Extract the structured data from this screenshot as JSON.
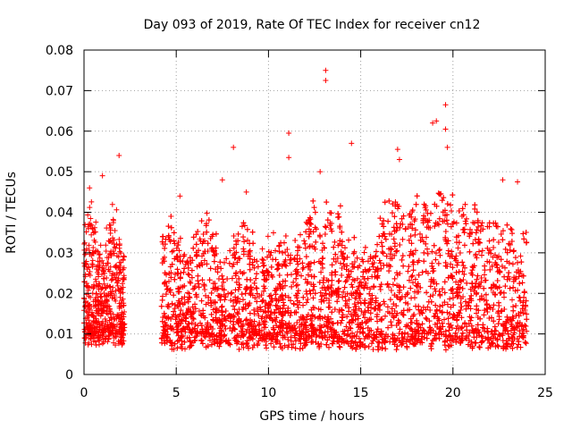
{
  "chart_data": {
    "type": "scatter",
    "title": "Day 093 of 2019, Rate Of TEC Index for receiver cn12",
    "xlabel": "GPS time / hours",
    "ylabel": "ROTI / TECUs",
    "xlim": [
      0,
      25
    ],
    "ylim": [
      0,
      0.08
    ],
    "xticks": [
      0,
      5,
      10,
      15,
      20,
      25
    ],
    "xtick_labels": [
      "0",
      "5",
      "10",
      "15",
      "20",
      "25"
    ],
    "yticks": [
      0,
      0.01,
      0.02,
      0.03,
      0.04,
      0.05,
      0.06,
      0.07,
      0.08
    ],
    "ytick_labels": [
      "0",
      "0.01",
      "0.02",
      "0.03",
      "0.04",
      "0.05",
      "0.06",
      "0.07",
      "0.08"
    ],
    "grid": true,
    "marker": "+",
    "color": "#ff0000",
    "series": [
      {
        "name": "ROTI",
        "segments": [
          {
            "x_start": 0.0,
            "x_end": 2.2,
            "typical_min": 0.005,
            "typical_max": 0.04
          },
          {
            "x_start": 4.2,
            "x_end": 24.0,
            "typical_min": 0.004,
            "typical_max": 0.045
          }
        ],
        "gap": [
          2.2,
          4.2
        ],
        "peaks": [
          {
            "x": 0.3,
            "y": 0.046
          },
          {
            "x": 1.0,
            "y": 0.049
          },
          {
            "x": 1.9,
            "y": 0.054
          },
          {
            "x": 5.2,
            "y": 0.044
          },
          {
            "x": 7.5,
            "y": 0.048
          },
          {
            "x": 8.1,
            "y": 0.056
          },
          {
            "x": 8.8,
            "y": 0.045
          },
          {
            "x": 11.1,
            "y": 0.0595
          },
          {
            "x": 11.1,
            "y": 0.0535
          },
          {
            "x": 12.8,
            "y": 0.05
          },
          {
            "x": 13.1,
            "y": 0.075
          },
          {
            "x": 13.1,
            "y": 0.0725
          },
          {
            "x": 14.5,
            "y": 0.057
          },
          {
            "x": 17.0,
            "y": 0.0555
          },
          {
            "x": 17.1,
            "y": 0.053
          },
          {
            "x": 18.9,
            "y": 0.062
          },
          {
            "x": 19.1,
            "y": 0.0625
          },
          {
            "x": 19.6,
            "y": 0.0665
          },
          {
            "x": 19.6,
            "y": 0.0605
          },
          {
            "x": 19.7,
            "y": 0.056
          },
          {
            "x": 22.7,
            "y": 0.048
          },
          {
            "x": 23.5,
            "y": 0.0475
          }
        ]
      }
    ]
  }
}
